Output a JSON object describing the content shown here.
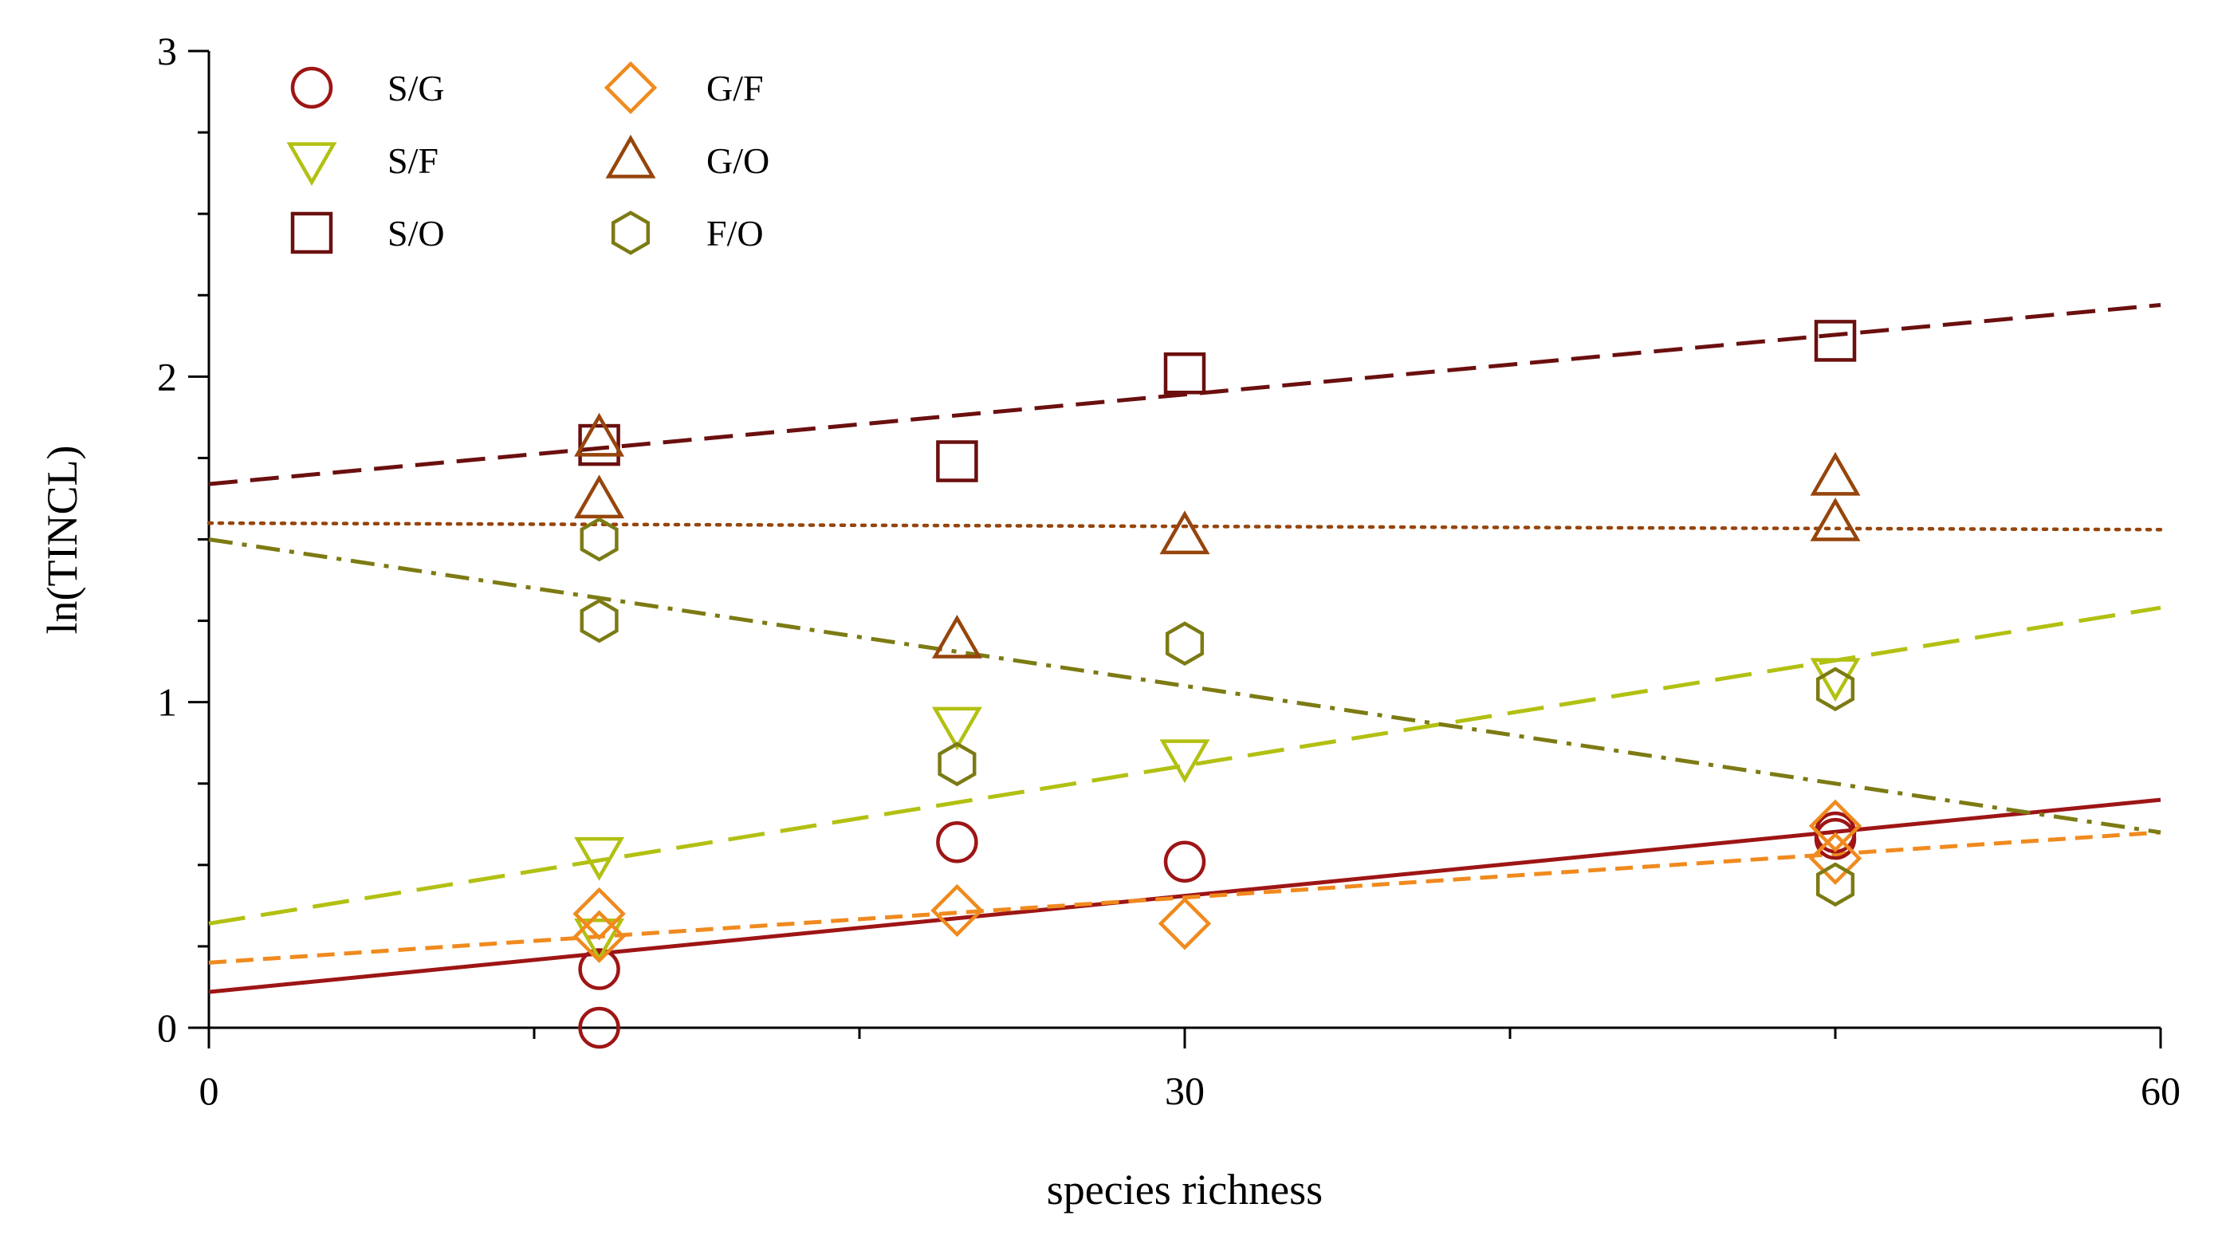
{
  "chart_data": {
    "type": "scatter",
    "title": "",
    "xlabel": "species richness",
    "ylabel": "ln(TINCL)",
    "xlim": [
      0,
      60
    ],
    "ylim": [
      0,
      3
    ],
    "x_ticks": [
      "0",
      "30",
      "60"
    ],
    "y_ticks": [
      "0",
      "1",
      "2",
      "3"
    ],
    "grid": false,
    "legend_position": "top-left",
    "series": [
      {
        "name": "S/G",
        "marker": "circle",
        "color": "#9e1515",
        "points": [
          [
            12,
            0.0
          ],
          [
            12,
            0.18
          ],
          [
            23,
            0.57
          ],
          [
            30,
            0.51
          ],
          [
            50,
            0.58
          ],
          [
            50,
            0.6
          ]
        ],
        "fit": {
          "style": "solid",
          "x": [
            0,
            60
          ],
          "y": [
            0.11,
            0.7
          ]
        }
      },
      {
        "name": "S/F",
        "marker": "triangle-down",
        "color": "#b2c011",
        "points": [
          [
            12,
            0.53
          ],
          [
            12,
            0.28
          ],
          [
            23,
            0.93
          ],
          [
            30,
            0.83
          ],
          [
            50,
            1.08
          ]
        ],
        "fit": {
          "style": "long-dash",
          "x": [
            0,
            60
          ],
          "y": [
            0.32,
            1.29
          ]
        }
      },
      {
        "name": "S/O",
        "marker": "square",
        "color": "#6b0f0f",
        "points": [
          [
            12,
            1.79
          ],
          [
            23,
            1.74
          ],
          [
            30,
            2.01
          ],
          [
            50,
            2.11
          ]
        ],
        "fit": {
          "style": "dash",
          "x": [
            0,
            60
          ],
          "y": [
            1.67,
            2.22
          ]
        }
      },
      {
        "name": "G/F",
        "marker": "diamond",
        "color": "#f08a1e",
        "points": [
          [
            12,
            0.35
          ],
          [
            12,
            0.28
          ],
          [
            23,
            0.36
          ],
          [
            30,
            0.32
          ],
          [
            50,
            0.62
          ],
          [
            50,
            0.52
          ]
        ],
        "fit": {
          "style": "short-dash",
          "x": [
            0,
            60
          ],
          "y": [
            0.2,
            0.6
          ]
        }
      },
      {
        "name": "G/O",
        "marker": "triangle-up",
        "color": "#96450c",
        "points": [
          [
            12,
            1.81
          ],
          [
            12,
            1.62
          ],
          [
            23,
            1.19
          ],
          [
            30,
            1.51
          ],
          [
            50,
            1.69
          ],
          [
            50,
            1.55
          ]
        ],
        "fit": {
          "style": "dotted",
          "x": [
            0,
            60
          ],
          "y": [
            1.55,
            1.53
          ]
        }
      },
      {
        "name": "F/O",
        "marker": "hexagon",
        "color": "#7c7b14",
        "points": [
          [
            12,
            1.5
          ],
          [
            12,
            1.25
          ],
          [
            23,
            0.81
          ],
          [
            30,
            1.18
          ],
          [
            50,
            1.04
          ],
          [
            50,
            0.44
          ]
        ],
        "fit": {
          "style": "dash-dot",
          "x": [
            0,
            60
          ],
          "y": [
            1.5,
            0.6
          ]
        }
      }
    ]
  }
}
